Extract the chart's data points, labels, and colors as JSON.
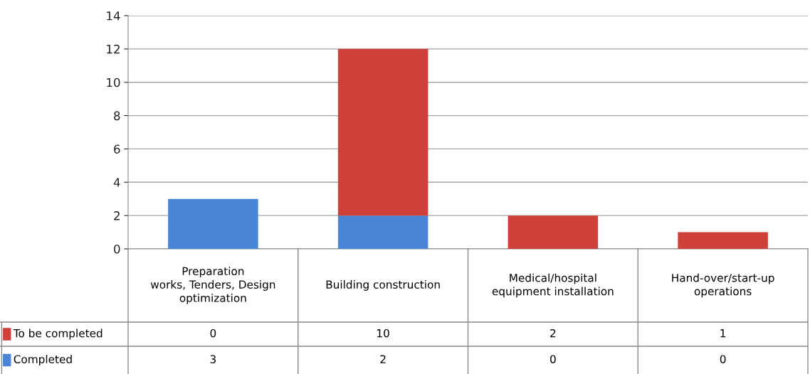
{
  "chart_data": {
    "type": "bar",
    "stacked": true,
    "categories": [
      "Preparation\nworks, Tenders, Design\noptimization",
      "Building construction",
      "Medical/hospital\nequipment installation",
      "Hand-over/start-up\noperations"
    ],
    "series": [
      {
        "name": "Completed",
        "color": "#4a84d4",
        "values": [
          3,
          2,
          0,
          0
        ]
      },
      {
        "name": "To be completed",
        "color": "#d0403b",
        "values": [
          0,
          10,
          2,
          1
        ]
      }
    ],
    "ylim": [
      0,
      14
    ],
    "yticks": [
      0,
      2,
      4,
      6,
      8,
      10,
      12,
      14
    ],
    "grid": "y",
    "legend": "bottom left",
    "data_labels": true
  }
}
